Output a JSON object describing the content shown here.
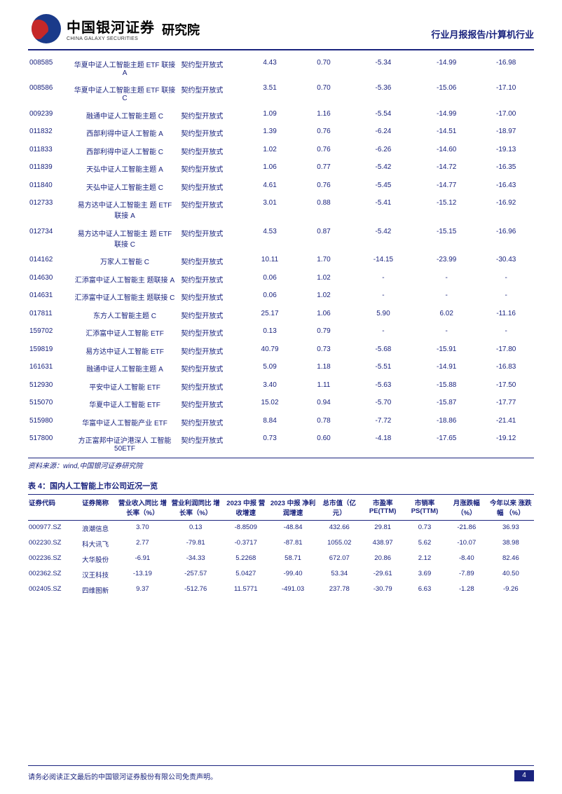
{
  "header": {
    "logo_cn": "中国银河证券",
    "logo_en": "CHINA GALAXY SECURITIES",
    "logo_sub": "研究院",
    "right_text": "行业月报报告/计算机行业"
  },
  "table1": {
    "rows": [
      {
        "code": "008585",
        "name": "华夏中证人工智能主题 ETF 联接 A",
        "type": "契约型开放式",
        "v1": "4.43",
        "v2": "0.70",
        "v3": "-5.34",
        "v4": "-14.99",
        "v5": "-16.98"
      },
      {
        "code": "008586",
        "name": "华夏中证人工智能主题 ETF 联接 C",
        "type": "契约型开放式",
        "v1": "3.51",
        "v2": "0.70",
        "v3": "-5.36",
        "v4": "-15.06",
        "v5": "-17.10"
      },
      {
        "code": "009239",
        "name": "融通中证人工智能主题 C",
        "type": "契约型开放式",
        "v1": "1.09",
        "v2": "1.16",
        "v3": "-5.54",
        "v4": "-14.99",
        "v5": "-17.00"
      },
      {
        "code": "011832",
        "name": "西部利得中证人工智能 A",
        "type": "契约型开放式",
        "v1": "1.39",
        "v2": "0.76",
        "v3": "-6.24",
        "v4": "-14.51",
        "v5": "-18.97"
      },
      {
        "code": "011833",
        "name": "西部利得中证人工智能 C",
        "type": "契约型开放式",
        "v1": "1.02",
        "v2": "0.76",
        "v3": "-6.26",
        "v4": "-14.60",
        "v5": "-19.13"
      },
      {
        "code": "011839",
        "name": "天弘中证人工智能主题 A",
        "type": "契约型开放式",
        "v1": "1.06",
        "v2": "0.77",
        "v3": "-5.42",
        "v4": "-14.72",
        "v5": "-16.35"
      },
      {
        "code": "011840",
        "name": "天弘中证人工智能主题 C",
        "type": "契约型开放式",
        "v1": "4.61",
        "v2": "0.76",
        "v3": "-5.45",
        "v4": "-14.77",
        "v5": "-16.43"
      },
      {
        "code": "012733",
        "name": "易方达中证人工智能主 题 ETF 联接 A",
        "type": "契约型开放式",
        "v1": "3.01",
        "v2": "0.88",
        "v3": "-5.41",
        "v4": "-15.12",
        "v5": "-16.92"
      },
      {
        "code": "012734",
        "name": "易方达中证人工智能主 题 ETF 联接 C",
        "type": "契约型开放式",
        "v1": "4.53",
        "v2": "0.87",
        "v3": "-5.42",
        "v4": "-15.15",
        "v5": "-16.96"
      },
      {
        "code": "014162",
        "name": "万家人工智能 C",
        "type": "契约型开放式",
        "v1": "10.11",
        "v2": "1.70",
        "v3": "-14.15",
        "v4": "-23.99",
        "v5": "-30.43"
      },
      {
        "code": "014630",
        "name": "汇添富中证人工智能主 题联接 A",
        "type": "契约型开放式",
        "v1": "0.06",
        "v2": "1.02",
        "v3": "-",
        "v4": "-",
        "v5": "-"
      },
      {
        "code": "014631",
        "name": "汇添富中证人工智能主 题联接 C",
        "type": "契约型开放式",
        "v1": "0.06",
        "v2": "1.02",
        "v3": "-",
        "v4": "-",
        "v5": "-"
      },
      {
        "code": "017811",
        "name": "东方人工智能主题 C",
        "type": "契约型开放式",
        "v1": "25.17",
        "v2": "1.06",
        "v3": "5.90",
        "v4": "6.02",
        "v5": "-11.16"
      },
      {
        "code": "159702",
        "name": "汇添富中证人工智能 ETF",
        "type": "契约型开放式",
        "v1": "0.13",
        "v2": "0.79",
        "v3": "-",
        "v4": "-",
        "v5": "-"
      },
      {
        "code": "159819",
        "name": "易方达中证人工智能 ETF",
        "type": "契约型开放式",
        "v1": "40.79",
        "v2": "0.73",
        "v3": "-5.68",
        "v4": "-15.91",
        "v5": "-17.80"
      },
      {
        "code": "161631",
        "name": "融通中证人工智能主题 A",
        "type": "契约型开放式",
        "v1": "5.09",
        "v2": "1.18",
        "v3": "-5.51",
        "v4": "-14.91",
        "v5": "-16.83"
      },
      {
        "code": "512930",
        "name": "平安中证人工智能 ETF",
        "type": "契约型开放式",
        "v1": "3.40",
        "v2": "1.11",
        "v3": "-5.63",
        "v4": "-15.88",
        "v5": "-17.50"
      },
      {
        "code": "515070",
        "name": "华夏中证人工智能 ETF",
        "type": "契约型开放式",
        "v1": "15.02",
        "v2": "0.94",
        "v3": "-5.70",
        "v4": "-15.87",
        "v5": "-17.77"
      },
      {
        "code": "515980",
        "name": "华富中证人工智能产业 ETF",
        "type": "契约型开放式",
        "v1": "8.84",
        "v2": "0.78",
        "v3": "-7.72",
        "v4": "-18.86",
        "v5": "-21.41"
      },
      {
        "code": "517800",
        "name": "方正富邦中证沪港深人 工智能 50ETF",
        "type": "契约型开放式",
        "v1": "0.73",
        "v2": "0.60",
        "v3": "-4.18",
        "v4": "-17.65",
        "v5": "-19.12"
      }
    ],
    "source": "资料来源：wind,中国银河证券研究院"
  },
  "table2": {
    "title": "表 4：国内人工智能上市公司近况一览",
    "headers": [
      "证券代码",
      "证券简称",
      "营业收入同比 增长率（%）",
      "营业利润同比 增长率（%）",
      "2023 中报 营收增速",
      "2023 中报 净利润增速",
      "总市值（亿 元）",
      "市盈率 PE(TTM)",
      "市销率 PS(TTM)",
      "月涨跌幅 （%）",
      "今年以来 涨跌幅 （%）"
    ],
    "col_widths": [
      "62px",
      "56px",
      "70px",
      "72px",
      "62px",
      "64px",
      "60px",
      "56px",
      "56px",
      "56px",
      "62px"
    ],
    "rows": [
      {
        "c": [
          "000977.SZ",
          "浪潮信息",
          "3.70",
          "0.13",
          "-8.8509",
          "-48.84",
          "432.66",
          "29.81",
          "0.73",
          "-21.86",
          "36.93"
        ]
      },
      {
        "c": [
          "002230.SZ",
          "科大讯飞",
          "2.77",
          "-79.81",
          "-0.3717",
          "-87.81",
          "1055.02",
          "438.97",
          "5.62",
          "-10.07",
          "38.98"
        ]
      },
      {
        "c": [
          "002236.SZ",
          "大华股份",
          "-6.91",
          "-34.33",
          "5.2268",
          "58.71",
          "672.07",
          "20.86",
          "2.12",
          "-8.40",
          "82.46"
        ]
      },
      {
        "c": [
          "002362.SZ",
          "汉王科技",
          "-13.19",
          "-257.57",
          "5.0427",
          "-99.40",
          "53.34",
          "-29.61",
          "3.69",
          "-7.89",
          "40.50"
        ]
      },
      {
        "c": [
          "002405.SZ",
          "四维图新",
          "9.37",
          "-512.76",
          "11.5771",
          "-491.03",
          "237.78",
          "-30.79",
          "6.63",
          "-1.28",
          "-9.26"
        ]
      }
    ]
  },
  "footer": {
    "disclaimer": "请务必阅读正文最后的中国银河证券股份有限公司免责声明。",
    "page": "4"
  }
}
